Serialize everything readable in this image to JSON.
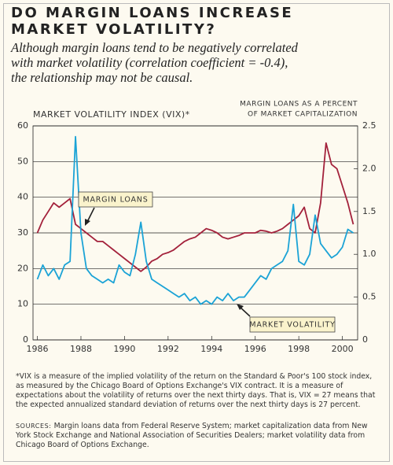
{
  "chart_data": {
    "type": "line",
    "title": [
      "DO MARGIN LOANS INCREASE",
      "MARKET VOLATILITY?"
    ],
    "subtitle": [
      "Although margin loans tend to be negatively correlated",
      "with market volatility (correlation coefficient = -0.4),",
      "the relationship may not be causal."
    ],
    "ylabel": "MARKET VOLATILITY INDEX (VIX)*",
    "y2label": [
      "MARGIN LOANS AS A PERCENT",
      "OF MARKET CAPITALIZATION"
    ],
    "x": [
      1986,
      1986.25,
      1986.5,
      1986.75,
      1987,
      1987.25,
      1987.5,
      1987.75,
      1988,
      1988.25,
      1988.5,
      1988.75,
      1989,
      1989.25,
      1989.5,
      1989.75,
      1990,
      1990.25,
      1990.5,
      1990.75,
      1991,
      1991.25,
      1991.5,
      1991.75,
      1992,
      1992.25,
      1992.5,
      1992.75,
      1993,
      1993.25,
      1993.5,
      1993.75,
      1994,
      1994.25,
      1994.5,
      1994.75,
      1995,
      1995.25,
      1995.5,
      1995.75,
      1996,
      1996.25,
      1996.5,
      1996.75,
      1997,
      1997.25,
      1997.5,
      1997.75,
      1998,
      1998.25,
      1998.5,
      1998.75,
      1999,
      1999.25,
      1999.5,
      1999.75,
      2000,
      2000.25,
      2000.5
    ],
    "series": [
      {
        "name": "MARGIN LOANS",
        "color": "#a3213b",
        "axis": "y2",
        "values": [
          1.25,
          1.4,
          1.5,
          1.6,
          1.55,
          1.6,
          1.65,
          1.35,
          1.3,
          1.25,
          1.2,
          1.15,
          1.15,
          1.1,
          1.05,
          1.0,
          0.95,
          0.9,
          0.85,
          0.8,
          0.85,
          0.92,
          0.95,
          1.0,
          1.02,
          1.05,
          1.1,
          1.15,
          1.18,
          1.2,
          1.25,
          1.3,
          1.28,
          1.25,
          1.2,
          1.18,
          1.2,
          1.22,
          1.25,
          1.25,
          1.25,
          1.28,
          1.27,
          1.25,
          1.27,
          1.3,
          1.35,
          1.4,
          1.45,
          1.55,
          1.3,
          1.25,
          1.6,
          2.3,
          2.05,
          2.0,
          1.8,
          1.6,
          1.35
        ]
      },
      {
        "name": "MARKET VOLATILITY",
        "color": "#1ba3d6",
        "values": [
          17,
          21,
          18,
          20,
          17,
          21,
          22,
          57,
          30,
          20,
          18,
          17,
          16,
          17,
          16,
          21,
          19,
          18,
          24,
          33,
          22,
          17,
          16,
          15,
          14,
          13,
          12,
          13,
          11,
          12,
          10,
          11,
          10,
          12,
          11,
          13,
          11,
          12,
          12,
          14,
          16,
          18,
          17,
          20,
          21,
          22,
          25,
          38,
          22,
          21,
          24,
          35,
          27,
          25,
          23,
          24,
          26,
          31,
          30
        ]
      }
    ],
    "xlim": [
      1985.8,
      2000.7
    ],
    "xticks": [
      1986,
      1988,
      1990,
      1992,
      1994,
      1996,
      1998,
      2000
    ],
    "ylim": [
      0,
      60
    ],
    "yticks": [
      0,
      10,
      20,
      30,
      40,
      50,
      60
    ],
    "y2lim": [
      0,
      2.5
    ],
    "y2ticks": [
      0,
      0.5,
      {
        "value": 1,
        "label": "1.0"
      },
      1.5,
      {
        "value": 2,
        "label": "2.0"
      },
      2.5
    ],
    "grid": true,
    "footnote": "*VIX is a measure of the implied volatility of the return on the Standard & Poor's 100 stock index, as measured by the Chicago Board of Options Exchange's VIX contract. It is a measure of expectations about the volatility of returns over the next thirty days. That is, VIX = 27 means that the expected annualized standard deviation of returns over the next thirty days is 27 percent.",
    "sources_label": "SOURCES:",
    "sources": "Margin loans data from Federal Reserve System; market capitalization data from New York Stock Exchange and National Association of Securities Dealers; market volatility data from Chicago Board of Options Exchange."
  }
}
